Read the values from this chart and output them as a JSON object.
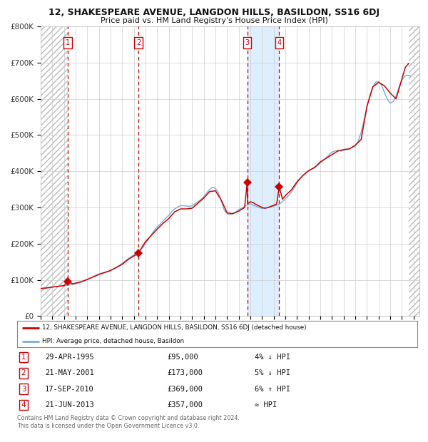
{
  "title": "12, SHAKESPEARE AVENUE, LANGDON HILLS, BASILDON, SS16 6DJ",
  "subtitle": "Price paid vs. HM Land Registry's House Price Index (HPI)",
  "background_color": "#ffffff",
  "plot_bg_color": "#ffffff",
  "grid_color": "#cccccc",
  "hatch_color": "#bbbbbb",
  "hpi_line_color": "#7aadd4",
  "price_line_color": "#cc0000",
  "marker_color": "#cc0000",
  "dashed_line_color": "#cc0000",
  "highlight_bg": "#ddeeff",
  "ylim": [
    0,
    800000
  ],
  "yticks": [
    0,
    100000,
    200000,
    300000,
    400000,
    500000,
    600000,
    700000,
    800000
  ],
  "ytick_labels": [
    "£0",
    "£100K",
    "£200K",
    "£300K",
    "£400K",
    "£500K",
    "£600K",
    "£700K",
    "£800K"
  ],
  "xlim_start": 1993.0,
  "xlim_end": 2025.5,
  "xticks": [
    1993,
    1994,
    1995,
    1996,
    1997,
    1998,
    1999,
    2000,
    2001,
    2002,
    2003,
    2004,
    2005,
    2006,
    2007,
    2008,
    2009,
    2010,
    2011,
    2012,
    2013,
    2014,
    2015,
    2016,
    2017,
    2018,
    2019,
    2020,
    2021,
    2022,
    2023,
    2024,
    2025
  ],
  "sale_dates": [
    1995.33,
    2001.38,
    2010.72,
    2013.47
  ],
  "sale_prices": [
    95000,
    173000,
    369000,
    357000
  ],
  "sale_labels": [
    "1",
    "2",
    "3",
    "4"
  ],
  "hatch_left_end": 1995.33,
  "hatch_right_start": 2024.58,
  "highlight_start": 2010.72,
  "highlight_end": 2013.47,
  "hpi_years": [
    1993.0,
    1993.25,
    1993.5,
    1993.75,
    1994.0,
    1994.25,
    1994.5,
    1994.75,
    1995.0,
    1995.25,
    1995.5,
    1995.75,
    1996.0,
    1996.25,
    1996.5,
    1996.75,
    1997.0,
    1997.25,
    1997.5,
    1997.75,
    1998.0,
    1998.25,
    1998.5,
    1998.75,
    1999.0,
    1999.25,
    1999.5,
    1999.75,
    2000.0,
    2000.25,
    2000.5,
    2000.75,
    2001.0,
    2001.25,
    2001.5,
    2001.75,
    2002.0,
    2002.25,
    2002.5,
    2002.75,
    2003.0,
    2003.25,
    2003.5,
    2003.75,
    2004.0,
    2004.25,
    2004.5,
    2004.75,
    2005.0,
    2005.25,
    2005.5,
    2005.75,
    2006.0,
    2006.25,
    2006.5,
    2006.75,
    2007.0,
    2007.25,
    2007.5,
    2007.75,
    2008.0,
    2008.25,
    2008.5,
    2008.75,
    2009.0,
    2009.25,
    2009.5,
    2009.75,
    2010.0,
    2010.25,
    2010.5,
    2010.75,
    2011.0,
    2011.25,
    2011.5,
    2011.75,
    2012.0,
    2012.25,
    2012.5,
    2012.75,
    2013.0,
    2013.25,
    2013.5,
    2013.75,
    2014.0,
    2014.25,
    2014.5,
    2014.75,
    2015.0,
    2015.25,
    2015.5,
    2015.75,
    2016.0,
    2016.25,
    2016.5,
    2016.75,
    2017.0,
    2017.25,
    2017.5,
    2017.75,
    2018.0,
    2018.25,
    2018.5,
    2018.75,
    2019.0,
    2019.25,
    2019.5,
    2019.75,
    2020.0,
    2020.25,
    2020.5,
    2020.75,
    2021.0,
    2021.25,
    2021.5,
    2021.75,
    2022.0,
    2022.25,
    2022.5,
    2022.75,
    2023.0,
    2023.25,
    2023.5,
    2023.75,
    2024.0,
    2024.25,
    2024.5,
    2024.75
  ],
  "hpi_values": [
    76000,
    77000,
    78000,
    79000,
    80000,
    81000,
    82000,
    83000,
    84000,
    85000,
    86000,
    87000,
    89000,
    91000,
    94000,
    97000,
    101000,
    105000,
    109000,
    113000,
    116000,
    119000,
    121000,
    123000,
    126000,
    130000,
    135000,
    140000,
    146000,
    152000,
    158000,
    164000,
    169000,
    174000,
    180000,
    189000,
    200000,
    212000,
    225000,
    237000,
    246000,
    254000,
    263000,
    271000,
    279000,
    289000,
    296000,
    301000,
    305000,
    305000,
    304000,
    303000,
    305000,
    310000,
    316000,
    322000,
    330000,
    340000,
    350000,
    356000,
    353000,
    340000,
    318000,
    293000,
    283000,
    280000,
    283000,
    288000,
    294000,
    298000,
    303000,
    308000,
    310000,
    306000,
    303000,
    300000,
    297000,
    298000,
    299000,
    301000,
    304000,
    306000,
    310000,
    316000,
    324000,
    332000,
    342000,
    354000,
    368000,
    380000,
    389000,
    396000,
    401000,
    406000,
    412000,
    416000,
    423000,
    430000,
    438000,
    446000,
    453000,
    456000,
    458000,
    456000,
    458000,
    460000,
    463000,
    466000,
    470000,
    483000,
    508000,
    543000,
    578000,
    608000,
    633000,
    646000,
    648000,
    638000,
    618000,
    598000,
    588000,
    593000,
    608000,
    633000,
    653000,
    663000,
    666000,
    663000
  ],
  "price_years": [
    1993.0,
    1993.5,
    1994.0,
    1994.5,
    1995.0,
    1995.33,
    1995.75,
    1996.0,
    1996.5,
    1997.0,
    1997.5,
    1998.0,
    1998.5,
    1999.0,
    1999.5,
    2000.0,
    2000.5,
    2001.0,
    2001.38,
    2001.75,
    2002.0,
    2002.5,
    2003.0,
    2003.5,
    2004.0,
    2004.5,
    2005.0,
    2005.5,
    2006.0,
    2006.5,
    2007.0,
    2007.5,
    2008.0,
    2008.5,
    2009.0,
    2009.5,
    2010.0,
    2010.5,
    2010.72,
    2010.75,
    2011.0,
    2011.25,
    2011.5,
    2011.75,
    2012.0,
    2012.25,
    2012.5,
    2012.75,
    2013.0,
    2013.25,
    2013.47,
    2013.75,
    2014.0,
    2014.5,
    2015.0,
    2015.5,
    2016.0,
    2016.5,
    2017.0,
    2017.5,
    2018.0,
    2018.5,
    2019.0,
    2019.5,
    2020.0,
    2020.5,
    2021.0,
    2021.5,
    2022.0,
    2022.5,
    2023.0,
    2023.5,
    2024.0,
    2024.3,
    2024.58
  ],
  "price_values": [
    76000,
    77500,
    80000,
    82000,
    84000,
    95000,
    89000,
    91000,
    95000,
    101000,
    108000,
    115000,
    120000,
    126000,
    134000,
    143000,
    156000,
    166000,
    173000,
    193000,
    206000,
    223000,
    240000,
    256000,
    270000,
    288000,
    296000,
    296000,
    298000,
    312000,
    326000,
    344000,
    346000,
    320000,
    285000,
    283000,
    290000,
    300000,
    369000,
    310000,
    316000,
    313000,
    308000,
    304000,
    300000,
    298000,
    300000,
    303000,
    306000,
    310000,
    357000,
    323000,
    333000,
    348000,
    371000,
    388000,
    402000,
    410000,
    426000,
    436000,
    446000,
    456000,
    460000,
    462000,
    472000,
    488000,
    580000,
    633000,
    646000,
    636000,
    616000,
    600000,
    656000,
    688000,
    698000
  ],
  "legend_line1": "12, SHAKESPEARE AVENUE, LANGDON HILLS, BASILDON, SS16 6DJ (detached house)",
  "legend_line2": "HPI: Average price, detached house, Basildon",
  "table_rows": [
    [
      "1",
      "29-APR-1995",
      "£95,000",
      "4% ↓ HPI"
    ],
    [
      "2",
      "21-MAY-2001",
      "£173,000",
      "5% ↓ HPI"
    ],
    [
      "3",
      "17-SEP-2010",
      "£369,000",
      "6% ↑ HPI"
    ],
    [
      "4",
      "21-JUN-2013",
      "£357,000",
      "≈ HPI"
    ]
  ],
  "footer": "Contains HM Land Registry data © Crown copyright and database right 2024.\nThis data is licensed under the Open Government Licence v3.0."
}
